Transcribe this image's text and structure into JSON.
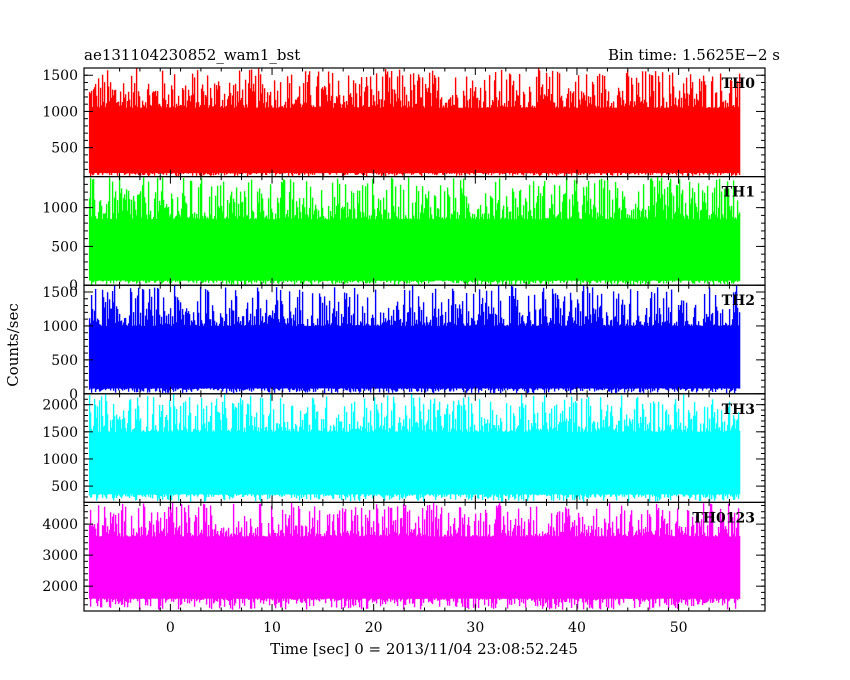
{
  "header": {
    "title": "ae131104230852_wam1_bst",
    "bin_time": "Bin time: 1.5625E−2 s"
  },
  "chart_data": {
    "type": "line",
    "title": "ae131104230852_wam1_bst",
    "subtitle": "Bin time: 1.5625E−2 s",
    "xlabel": "Time [sec] 0 = 2013/11/04 23:08:52.245",
    "ylabel": "Counts/sec",
    "xlim": [
      -8.5,
      58.5
    ],
    "x_data_range": [
      -8,
      56
    ],
    "x_ticks": [
      0,
      10,
      20,
      30,
      40,
      50
    ],
    "bin_time_s": 0.015625,
    "grid": false,
    "panels": [
      {
        "name": "TH0",
        "color": "#ff0000",
        "ylim": [
          100,
          1600
        ],
        "y_ticks": [
          500,
          1000,
          1500
        ],
        "band_low": 150,
        "band_high": 1050,
        "spike_max": 1600
      },
      {
        "name": "TH1",
        "color": "#00ff00",
        "ylim": [
          0,
          1400
        ],
        "y_ticks": [
          0,
          500,
          1000
        ],
        "band_low": 60,
        "band_high": 850,
        "spike_max": 1400
      },
      {
        "name": "TH2",
        "color": "#0000ff",
        "ylim": [
          0,
          1600
        ],
        "y_ticks": [
          0,
          500,
          1000,
          1500
        ],
        "band_low": 80,
        "band_high": 1000,
        "spike_max": 1600
      },
      {
        "name": "TH3",
        "color": "#00ffff",
        "ylim": [
          200,
          2200
        ],
        "y_ticks": [
          500,
          1000,
          1500,
          2000
        ],
        "band_low": 350,
        "band_high": 1500,
        "spike_max": 2200
      },
      {
        "name": "TH0123",
        "color": "#ff00ff",
        "ylim": [
          1200,
          4700
        ],
        "y_ticks": [
          2000,
          3000,
          4000
        ],
        "band_low": 1600,
        "band_high": 3600,
        "spike_max": 4700
      }
    ]
  }
}
